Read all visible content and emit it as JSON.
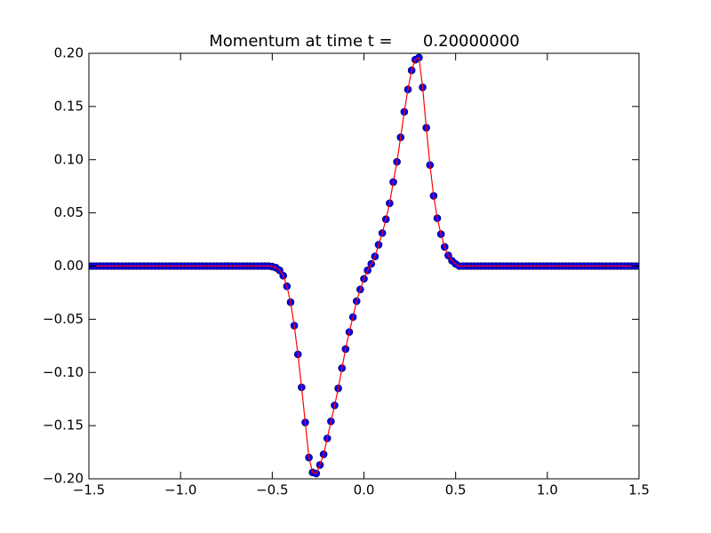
{
  "chart_data": {
    "type": "line",
    "title": "Momentum at time t =      0.20000000",
    "x": [
      -1.5,
      -1.48,
      -1.46,
      -1.44,
      -1.42,
      -1.4,
      -1.38,
      -1.36,
      -1.34,
      -1.32,
      -1.3,
      -1.28,
      -1.26,
      -1.24,
      -1.22,
      -1.2,
      -1.18,
      -1.16,
      -1.14,
      -1.12,
      -1.1,
      -1.08,
      -1.06,
      -1.04,
      -1.02,
      -1.0,
      -0.98,
      -0.96,
      -0.94,
      -0.92,
      -0.9,
      -0.88,
      -0.86,
      -0.84,
      -0.82,
      -0.8,
      -0.78,
      -0.76,
      -0.74,
      -0.72,
      -0.7,
      -0.68,
      -0.66,
      -0.64,
      -0.62,
      -0.6,
      -0.58,
      -0.56,
      -0.54,
      -0.52,
      -0.5,
      -0.48,
      -0.46,
      -0.44,
      -0.42,
      -0.4,
      -0.38,
      -0.36,
      -0.34,
      -0.32,
      -0.3,
      -0.28,
      -0.26,
      -0.24,
      -0.22,
      -0.2,
      -0.18,
      -0.16,
      -0.14,
      -0.12,
      -0.1,
      -0.08,
      -0.06,
      -0.04,
      -0.02,
      0,
      0.02,
      0.04,
      0.06,
      0.08,
      0.1,
      0.12,
      0.14,
      0.16,
      0.18,
      0.2,
      0.22,
      0.24,
      0.26,
      0.28,
      0.3,
      0.32,
      0.34,
      0.36,
      0.38,
      0.4,
      0.42,
      0.44,
      0.46,
      0.48,
      0.5,
      0.52,
      0.54,
      0.56,
      0.58,
      0.6,
      0.62,
      0.64,
      0.66,
      0.68,
      0.7,
      0.72,
      0.74,
      0.76,
      0.78,
      0.8,
      0.82,
      0.84,
      0.86,
      0.88,
      0.9,
      0.92,
      0.94,
      0.96,
      0.98,
      1.0,
      1.02,
      1.04,
      1.06,
      1.08,
      1.1,
      1.12,
      1.14,
      1.16,
      1.18,
      1.2,
      1.22,
      1.24,
      1.26,
      1.28,
      1.3,
      1.32,
      1.34,
      1.36,
      1.38,
      1.4,
      1.42,
      1.44,
      1.46,
      1.48,
      1.5
    ],
    "series": [
      {
        "color": "#0000ff",
        "line_color": "#ff0000",
        "values": [
          0,
          0,
          0,
          0,
          0,
          0,
          0,
          0,
          0,
          0,
          0,
          0,
          0,
          0,
          0,
          0,
          0,
          0,
          0,
          0,
          0,
          0,
          0,
          0,
          0,
          0,
          0,
          0,
          0,
          0,
          0,
          0,
          0,
          0,
          0,
          0,
          0,
          0,
          0,
          0,
          0,
          0,
          0,
          0,
          0,
          0,
          0,
          0,
          0,
          0,
          -0.0005,
          -0.0015,
          -0.004,
          -0.009,
          -0.019,
          -0.034,
          -0.056,
          -0.083,
          -0.114,
          -0.147,
          -0.18,
          -0.194,
          -0.195,
          -0.187,
          -0.177,
          -0.162,
          -0.146,
          -0.131,
          -0.115,
          -0.096,
          -0.078,
          -0.062,
          -0.048,
          -0.033,
          -0.022,
          -0.012,
          -0.004,
          0.002,
          0.009,
          0.02,
          0.031,
          0.044,
          0.059,
          0.079,
          0.098,
          0.121,
          0.145,
          0.166,
          0.184,
          0.194,
          0.196,
          0.168,
          0.13,
          0.095,
          0.066,
          0.045,
          0.03,
          0.018,
          0.01,
          0.005,
          0.002,
          0,
          0,
          0,
          0,
          0,
          0,
          0,
          0,
          0,
          0,
          0,
          0,
          0,
          0,
          0,
          0,
          0,
          0,
          0,
          0,
          0,
          0,
          0,
          0,
          0,
          0,
          0,
          0,
          0,
          0,
          0,
          0,
          0,
          0,
          0,
          0,
          0,
          0,
          0,
          0,
          0,
          0,
          0,
          0,
          0,
          0,
          0,
          0,
          0,
          0
        ]
      }
    ],
    "xlim": [
      -1.5,
      1.5
    ],
    "ylim": [
      -0.2,
      0.2
    ],
    "xticks": [
      {
        "value": -1.5,
        "label": "−1.5"
      },
      {
        "value": -1.0,
        "label": "−1.0"
      },
      {
        "value": -0.5,
        "label": "−0.5"
      },
      {
        "value": 0,
        "label": "0.0"
      },
      {
        "value": 0.5,
        "label": "0.5"
      },
      {
        "value": 1.0,
        "label": "1.0"
      },
      {
        "value": 1.5,
        "label": "1.5"
      }
    ],
    "yticks": [
      {
        "value": -0.2,
        "label": "−0.20"
      },
      {
        "value": -0.15,
        "label": "−0.15"
      },
      {
        "value": -0.1,
        "label": "−0.10"
      },
      {
        "value": -0.05,
        "label": "−0.05"
      },
      {
        "value": 0,
        "label": "0.00"
      },
      {
        "value": 0.05,
        "label": "0.05"
      },
      {
        "value": 0.1,
        "label": "0.10"
      },
      {
        "value": 0.15,
        "label": "0.15"
      },
      {
        "value": 0.2,
        "label": "0.20"
      }
    ]
  }
}
